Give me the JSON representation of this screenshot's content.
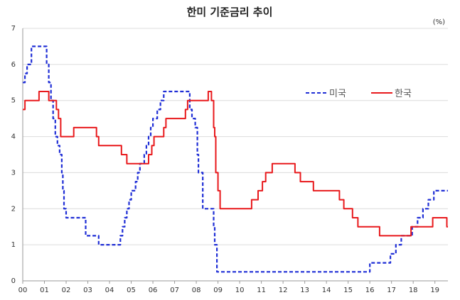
{
  "chart_data": {
    "type": "line",
    "title": "한미 기준금리 추이",
    "unit": "(%)",
    "xlabel": "",
    "ylabel": "",
    "x_tick_labels": [
      "00",
      "01",
      "02",
      "03",
      "04",
      "05",
      "06",
      "07",
      "08",
      "09",
      "10",
      "11",
      "12",
      "13",
      "14",
      "15",
      "16",
      "17",
      "18",
      "19"
    ],
    "xlim": [
      2000,
      2019.6
    ],
    "ylim": [
      0,
      7
    ],
    "y_ticks": [
      0,
      1,
      2,
      3,
      4,
      5,
      6,
      7
    ],
    "grid": true,
    "legend_position": "upper-right",
    "series": [
      {
        "name": "미국",
        "color": "#1f2ed6",
        "style": "dashed",
        "step": true,
        "points": [
          [
            2000.0,
            5.5
          ],
          [
            2000.1,
            5.75
          ],
          [
            2000.2,
            6.0
          ],
          [
            2000.4,
            6.5
          ],
          [
            2001.0,
            6.5
          ],
          [
            2001.1,
            6.0
          ],
          [
            2001.2,
            5.5
          ],
          [
            2001.3,
            5.0
          ],
          [
            2001.4,
            4.5
          ],
          [
            2001.5,
            4.0
          ],
          [
            2001.6,
            3.75
          ],
          [
            2001.7,
            3.5
          ],
          [
            2001.8,
            3.0
          ],
          [
            2001.85,
            2.5
          ],
          [
            2001.9,
            2.0
          ],
          [
            2002.0,
            1.75
          ],
          [
            2002.9,
            1.25
          ],
          [
            2003.5,
            1.0
          ],
          [
            2004.5,
            1.25
          ],
          [
            2004.6,
            1.5
          ],
          [
            2004.7,
            1.75
          ],
          [
            2004.8,
            2.0
          ],
          [
            2004.9,
            2.25
          ],
          [
            2005.0,
            2.5
          ],
          [
            2005.2,
            2.75
          ],
          [
            2005.3,
            3.0
          ],
          [
            2005.4,
            3.25
          ],
          [
            2005.6,
            3.5
          ],
          [
            2005.7,
            3.75
          ],
          [
            2005.8,
            4.0
          ],
          [
            2005.9,
            4.25
          ],
          [
            2006.0,
            4.5
          ],
          [
            2006.2,
            4.75
          ],
          [
            2006.35,
            5.0
          ],
          [
            2006.5,
            5.25
          ],
          [
            2007.7,
            4.75
          ],
          [
            2007.8,
            4.5
          ],
          [
            2007.95,
            4.25
          ],
          [
            2008.05,
            3.5
          ],
          [
            2008.1,
            3.0
          ],
          [
            2008.3,
            2.0
          ],
          [
            2008.8,
            1.5
          ],
          [
            2008.85,
            1.0
          ],
          [
            2008.95,
            0.25
          ],
          [
            2015.95,
            0.25
          ],
          [
            2016.0,
            0.5
          ],
          [
            2016.95,
            0.75
          ],
          [
            2017.2,
            1.0
          ],
          [
            2017.45,
            1.25
          ],
          [
            2017.95,
            1.5
          ],
          [
            2018.2,
            1.75
          ],
          [
            2018.45,
            2.0
          ],
          [
            2018.7,
            2.25
          ],
          [
            2018.95,
            2.5
          ],
          [
            2019.6,
            2.5
          ]
        ]
      },
      {
        "name": "한국",
        "color": "#e8191c",
        "style": "solid",
        "step": true,
        "points": [
          [
            2000.0,
            4.75
          ],
          [
            2000.1,
            5.0
          ],
          [
            2000.75,
            5.25
          ],
          [
            2001.2,
            5.0
          ],
          [
            2001.55,
            4.75
          ],
          [
            2001.65,
            4.5
          ],
          [
            2001.75,
            4.0
          ],
          [
            2002.35,
            4.25
          ],
          [
            2003.4,
            4.0
          ],
          [
            2003.5,
            3.75
          ],
          [
            2004.55,
            3.5
          ],
          [
            2004.8,
            3.25
          ],
          [
            2005.8,
            3.5
          ],
          [
            2005.95,
            3.75
          ],
          [
            2006.05,
            4.0
          ],
          [
            2006.5,
            4.25
          ],
          [
            2006.6,
            4.5
          ],
          [
            2007.5,
            4.75
          ],
          [
            2007.6,
            5.0
          ],
          [
            2008.55,
            5.25
          ],
          [
            2008.7,
            5.0
          ],
          [
            2008.8,
            4.25
          ],
          [
            2008.85,
            4.0
          ],
          [
            2008.9,
            3.0
          ],
          [
            2009.0,
            2.5
          ],
          [
            2009.1,
            2.0
          ],
          [
            2010.55,
            2.25
          ],
          [
            2010.85,
            2.5
          ],
          [
            2011.05,
            2.75
          ],
          [
            2011.2,
            3.0
          ],
          [
            2011.5,
            3.25
          ],
          [
            2012.55,
            3.0
          ],
          [
            2012.8,
            2.75
          ],
          [
            2013.4,
            2.5
          ],
          [
            2014.6,
            2.25
          ],
          [
            2014.8,
            2.0
          ],
          [
            2015.2,
            1.75
          ],
          [
            2015.45,
            1.5
          ],
          [
            2016.45,
            1.25
          ],
          [
            2017.9,
            1.5
          ],
          [
            2018.9,
            1.75
          ],
          [
            2019.55,
            1.5
          ],
          [
            2019.6,
            1.5
          ]
        ]
      }
    ]
  }
}
